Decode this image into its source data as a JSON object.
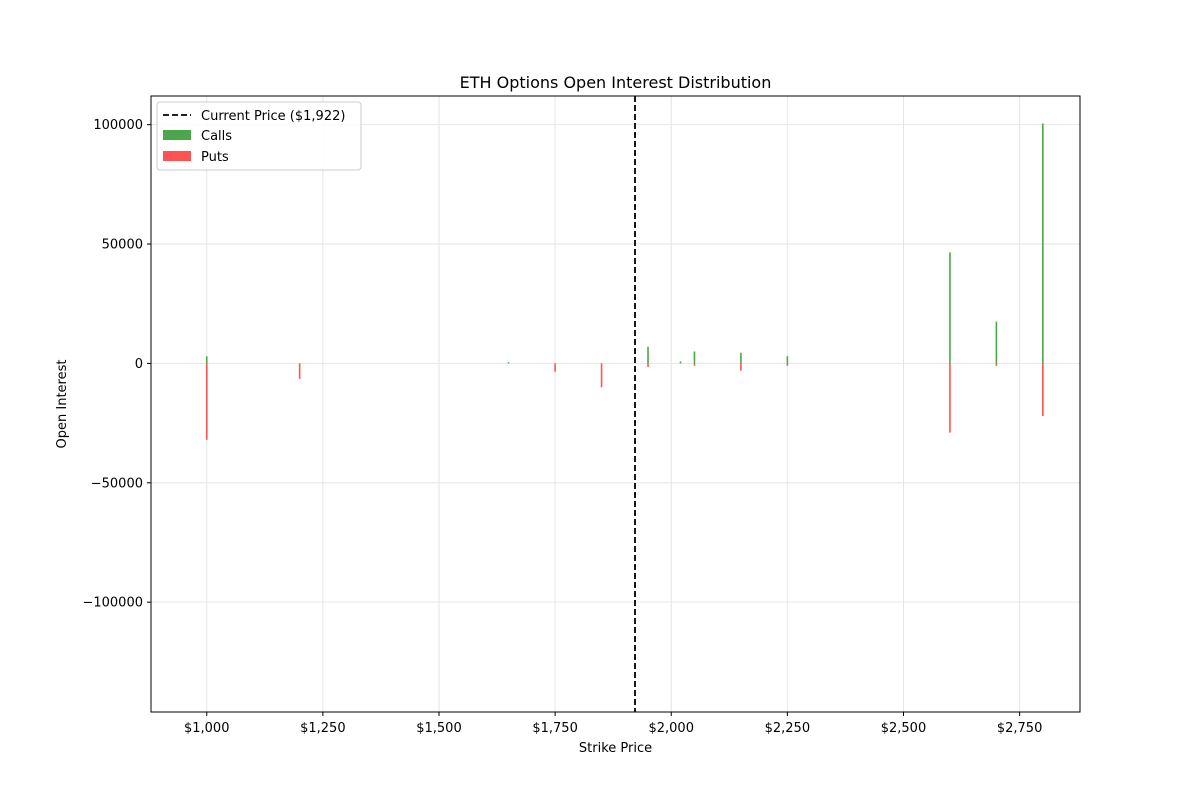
{
  "chart_data": {
    "type": "bar",
    "title": "ETH Options Open Interest Distribution",
    "xlabel": "Strike Price",
    "ylabel": "Open Interest",
    "xlim": [
      880,
      2880
    ],
    "ylim": [
      -146000,
      112000
    ],
    "x_ticks": [
      1000,
      1250,
      1500,
      1750,
      2000,
      2250,
      2500,
      2750
    ],
    "x_tick_labels": [
      "$1,000",
      "$1,250",
      "$1,500",
      "$1,750",
      "$2,000",
      "$2,250",
      "$2,500",
      "$2,750"
    ],
    "y_ticks": [
      -100000,
      -50000,
      0,
      50000,
      100000
    ],
    "y_tick_labels": [
      "−100000",
      "−50000",
      "0",
      "50000",
      "100000"
    ],
    "grid": true,
    "legend_position": "upper-left",
    "current_price": {
      "value": 1922,
      "label": "Current Price ($1,922)",
      "color": "#000000",
      "style": "dashed"
    },
    "series": [
      {
        "name": "Calls",
        "color": "#4ca64c",
        "strikes": [
          1000,
          1650,
          1950,
          2020,
          2050,
          2150,
          2250,
          2600,
          2700,
          2800
        ],
        "values": [
          3000,
          500,
          7000,
          800,
          5000,
          4500,
          3000,
          46500,
          17500,
          100500
        ]
      },
      {
        "name": "Puts",
        "color": "#ff5252",
        "strikes": [
          1000,
          1200,
          1750,
          1850,
          1950,
          2050,
          2150,
          2250,
          2600,
          2700,
          2800
        ],
        "values": [
          -32000,
          -6500,
          -3500,
          -10000,
          -1500,
          -1000,
          -3000,
          -1000,
          -29000,
          -1000,
          -22000
        ]
      }
    ]
  }
}
